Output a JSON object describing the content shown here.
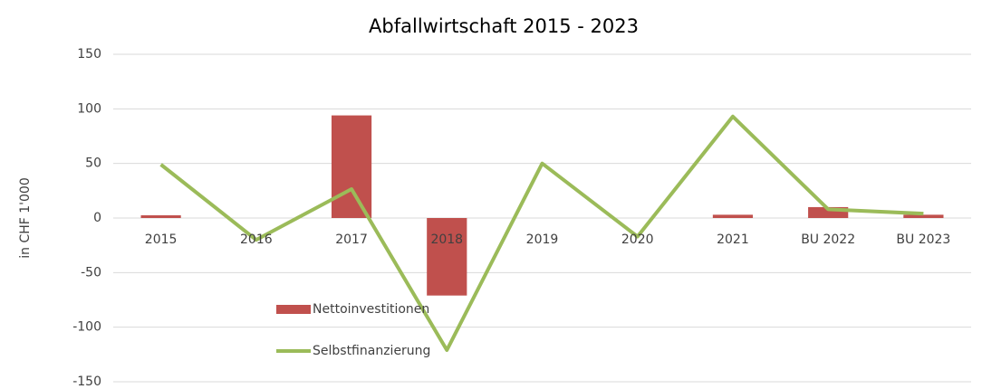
{
  "chart_data": {
    "type": "combo",
    "title": "Abfallwirtschaft 2015 - 2023",
    "y_label": "in CHF 1'000",
    "categories": [
      "2015",
      "2016",
      "2017",
      "2018",
      "2019",
      "2020",
      "2021",
      "BU 2022",
      "BU 2023"
    ],
    "series": [
      {
        "name": "Nettoinvestitionen",
        "type": "bar",
        "color": "#c0504d",
        "values": [
          2.5,
          0,
          94,
          -71,
          0,
          0,
          3,
          10,
          3
        ]
      },
      {
        "name": "Selbstfinanzierung",
        "type": "line",
        "color": "#9bbb59",
        "values": [
          49,
          -20,
          26.5,
          -121,
          50,
          -17,
          93,
          8,
          4
        ]
      }
    ],
    "ylim": [
      -150,
      150
    ],
    "yticks": [
      -150,
      -100,
      -50,
      0,
      50,
      100,
      150
    ],
    "grid": true
  }
}
